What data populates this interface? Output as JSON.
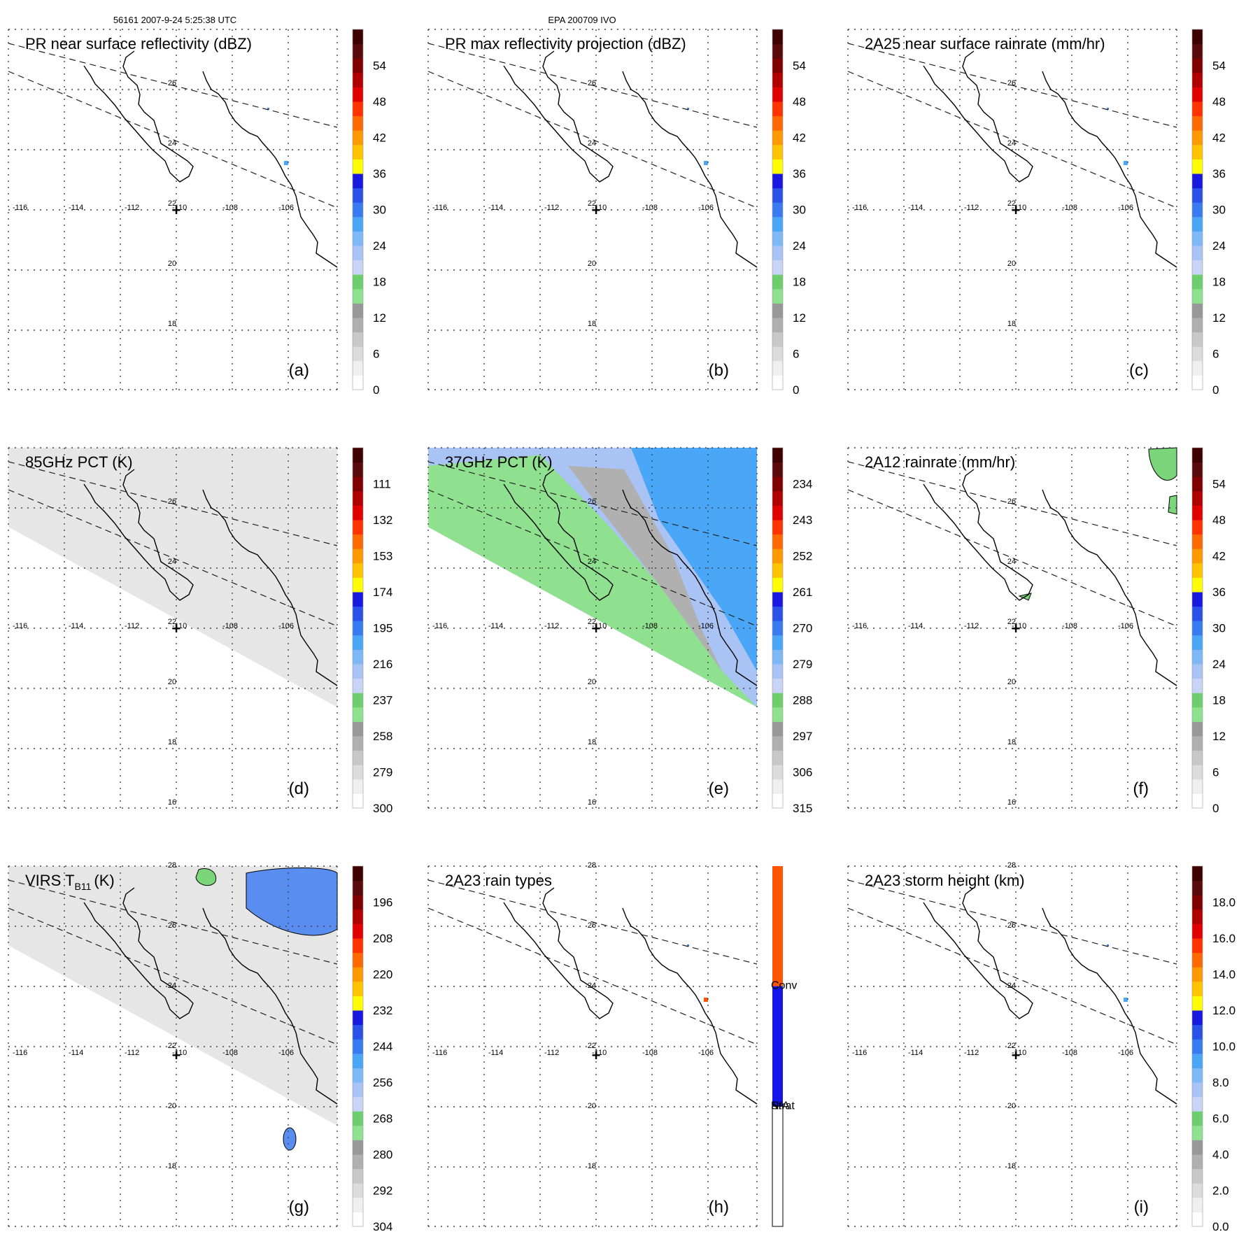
{
  "header": {
    "left": "56161 2007-9-24 5:25:38 UTC",
    "center": "EPA 200709 IVO"
  },
  "map": {
    "lon_labels": [
      "-116",
      "-114",
      "-112",
      "-110",
      "-108",
      "-106"
    ],
    "lat_labels_rows12": [
      "26",
      "24",
      "22",
      "20",
      "18"
    ],
    "lat_labels_row3": [
      "28",
      "26",
      "24",
      "22",
      "20",
      "18"
    ],
    "lat_label_extra_row2": "16",
    "storm_center": "+"
  },
  "colors": {
    "ramp_greys": [
      "#ffffff",
      "#efefef",
      "#dcdcdc",
      "#c8c8c8",
      "#b0b0b0",
      "#989898"
    ],
    "ramp_greens": [
      "#8fe08f",
      "#6ccf6c"
    ],
    "ramp_lightblue": [
      "#c9d3f5",
      "#a9c4f4",
      "#7fb8f7",
      "#4aa6f7"
    ],
    "ramp_blues": [
      "#3a7af0",
      "#2a52e8",
      "#1818e0"
    ],
    "ramp_hot": [
      "#ffff00",
      "#ffc400",
      "#ff9900",
      "#ff6a00",
      "#ff3300",
      "#e00000",
      "#b00000",
      "#800000",
      "#5a0a0a",
      "#3f0000"
    ],
    "rain_conv": "#ff5500",
    "rain_strat": "#1515e6",
    "rain_na": "#ffffff",
    "swath_grey": "#e6e6e6",
    "land_green": "#7bd67b",
    "cloud_blue": "#5a8df0",
    "coast": "#000000"
  },
  "chart_data": [
    {
      "id": "a",
      "type": "heatmap",
      "title": "PR near surface reflectivity (dBZ)",
      "panel_label": "(a)",
      "colorbar": {
        "kind": "dbz",
        "ticks": [
          "0",
          "6",
          "12",
          "18",
          "24",
          "30",
          "36",
          "42",
          "48",
          "54"
        ]
      },
      "field": "sparse-echoes"
    },
    {
      "id": "b",
      "type": "heatmap",
      "title": "PR max reflectivity projection (dBZ)",
      "panel_label": "(b)",
      "colorbar": {
        "kind": "dbz",
        "ticks": [
          "0",
          "6",
          "12",
          "18",
          "24",
          "30",
          "36",
          "42",
          "48",
          "54"
        ]
      },
      "field": "sparse-echoes"
    },
    {
      "id": "c",
      "type": "heatmap",
      "title": "2A25 near surface rainrate (mm/hr)",
      "panel_label": "(c)",
      "colorbar": {
        "kind": "rain",
        "ticks": [
          "0",
          "6",
          "12",
          "18",
          "24",
          "30",
          "36",
          "42",
          "48",
          "54"
        ]
      },
      "field": "sparse-echoes"
    },
    {
      "id": "d",
      "type": "heatmap",
      "title": "85GHz PCT (K)",
      "panel_label": "(d)",
      "colorbar": {
        "kind": "pct",
        "ticks": [
          "300",
          "279",
          "258",
          "237",
          "216",
          "195",
          "174",
          "153",
          "132",
          "111"
        ]
      },
      "field": "grey-swath"
    },
    {
      "id": "e",
      "type": "heatmap",
      "title": "37GHz PCT (K)",
      "panel_label": "(e)",
      "colorbar": {
        "kind": "pct",
        "ticks": [
          "315",
          "306",
          "297",
          "288",
          "279",
          "270",
          "261",
          "252",
          "243",
          "234"
        ]
      },
      "field": "color-swath"
    },
    {
      "id": "f",
      "type": "heatmap",
      "title": "2A12 rainrate (mm/hr)",
      "panel_label": "(f)",
      "colorbar": {
        "kind": "rain",
        "ticks": [
          "0",
          "6",
          "12",
          "18",
          "24",
          "30",
          "36",
          "42",
          "48",
          "54"
        ]
      },
      "field": "green-patches"
    },
    {
      "id": "g",
      "type": "heatmap",
      "title": "VIRS T",
      "title_sub": "B11",
      "title_tail": "(K)",
      "panel_label": "(g)",
      "colorbar": {
        "kind": "virs",
        "ticks": [
          "304",
          "292",
          "280",
          "268",
          "256",
          "244",
          "232",
          "220",
          "208",
          "196"
        ]
      },
      "field": "virs-swath"
    },
    {
      "id": "h",
      "type": "heatmap",
      "title": "2A23 rain types",
      "panel_label": "(h)",
      "colorbar": {
        "kind": "types",
        "ticks": [
          "N/A",
          "Strat",
          "Conv"
        ]
      },
      "field": "sparse-types"
    },
    {
      "id": "i",
      "type": "heatmap",
      "title": "2A23 storm height (km)",
      "panel_label": "(i)",
      "colorbar": {
        "kind": "height",
        "ticks": [
          "0.0",
          "2.0",
          "4.0",
          "6.0",
          "8.0",
          "10.0",
          "12.0",
          "14.0",
          "16.0",
          "18.0"
        ]
      },
      "field": "sparse-echoes"
    }
  ]
}
